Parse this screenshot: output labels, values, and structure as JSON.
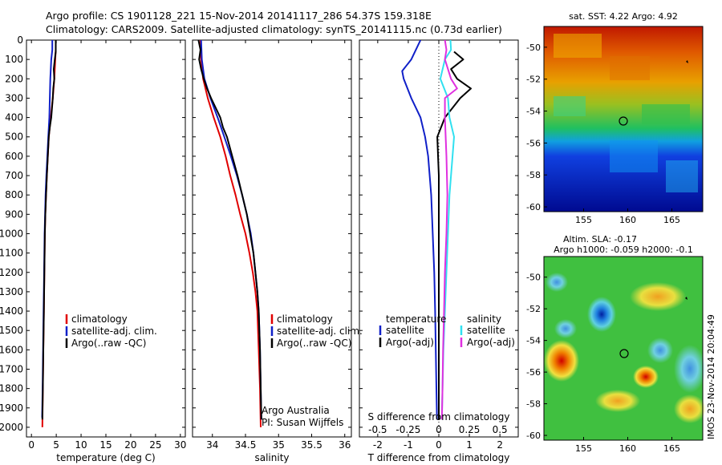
{
  "title_line1": "Argo profile: CS 1901128_221 15-Nov-2014 20141117_286 54.37S 159.318E",
  "title_line2": "Climatology: CARS2009. Satellite-adjusted climatology: synTS_20141115.nc (0.73d earlier)",
  "colors": {
    "climatology": "#e00000",
    "satellite": "#1020c8",
    "argo": "#000000",
    "sal_satellite": "#30e0f0",
    "sal_argo": "#e030e0"
  },
  "chart_data": [
    {
      "type": "line",
      "xlabel": "temperature (deg C)",
      "xlim": [
        -1,
        31
      ],
      "ylim": [
        0,
        2050
      ],
      "x_ticks": [
        "0",
        "5",
        "10",
        "15",
        "20",
        "25",
        "30"
      ],
      "y_ticks": [
        "0",
        "100",
        "200",
        "300",
        "400",
        "500",
        "600",
        "700",
        "800",
        "900",
        "1000",
        "1100",
        "1200",
        "1300",
        "1400",
        "1500",
        "1600",
        "1700",
        "1800",
        "1900",
        "2000"
      ],
      "legend": [
        "climatology",
        "satellite-adj. clim.",
        "Argo(..raw -QC)"
      ],
      "series": [
        {
          "name": "climatology",
          "color": "#e00000",
          "points": [
            [
              4.9,
              0
            ],
            [
              4.9,
              50
            ],
            [
              4.8,
              100
            ],
            [
              4.6,
              200
            ],
            [
              4.3,
              300
            ],
            [
              3.9,
              400
            ],
            [
              3.5,
              500
            ],
            [
              3.3,
              600
            ],
            [
              3.1,
              700
            ],
            [
              2.95,
              800
            ],
            [
              2.8,
              900
            ],
            [
              2.7,
              1000
            ],
            [
              2.6,
              1200
            ],
            [
              2.5,
              1400
            ],
            [
              2.4,
              1600
            ],
            [
              2.3,
              1800
            ],
            [
              2.2,
              2000
            ]
          ]
        },
        {
          "name": "satellite-adj. clim.",
          "color": "#1020c8",
          "points": [
            [
              4.2,
              0
            ],
            [
              4.2,
              50
            ],
            [
              4.0,
              100
            ],
            [
              3.8,
              200
            ],
            [
              3.7,
              300
            ],
            [
              3.6,
              400
            ],
            [
              3.4,
              500
            ],
            [
              3.2,
              600
            ],
            [
              3.0,
              700
            ],
            [
              2.85,
              800
            ],
            [
              2.75,
              900
            ],
            [
              2.65,
              1000
            ],
            [
              2.55,
              1200
            ],
            [
              2.45,
              1400
            ],
            [
              2.35,
              1600
            ],
            [
              2.25,
              1800
            ],
            [
              2.15,
              1950
            ]
          ]
        },
        {
          "name": "Argo(..raw -QC)",
          "color": "#000000",
          "points": [
            [
              4.9,
              0
            ],
            [
              4.9,
              60
            ],
            [
              4.7,
              100
            ],
            [
              4.5,
              150
            ],
            [
              4.6,
              200
            ],
            [
              4.4,
              250
            ],
            [
              4.3,
              300
            ],
            [
              4.0,
              400
            ],
            [
              3.7,
              450
            ],
            [
              3.5,
              500
            ],
            [
              3.3,
              600
            ],
            [
              3.1,
              700
            ],
            [
              2.95,
              800
            ],
            [
              2.8,
              900
            ],
            [
              2.7,
              1000
            ],
            [
              2.6,
              1200
            ],
            [
              2.5,
              1400
            ],
            [
              2.4,
              1600
            ],
            [
              2.3,
              1800
            ],
            [
              2.2,
              1960
            ]
          ]
        }
      ]
    },
    {
      "type": "line",
      "xlabel": "salinity",
      "xlim": [
        33.7,
        36.1
      ],
      "ylim": [
        0,
        2050
      ],
      "x_ticks": [
        "34",
        "34.5",
        "35",
        "35.5",
        "36"
      ],
      "legend": [
        "climatology",
        "satellite-adj. clim.",
        "Argo(..raw -QC)"
      ],
      "annotation": [
        "Argo Australia",
        "PI: Susan Wijffels"
      ],
      "series": [
        {
          "name": "climatology",
          "color": "#e00000",
          "points": [
            [
              33.82,
              0
            ],
            [
              33.83,
              100
            ],
            [
              33.86,
              200
            ],
            [
              33.93,
              300
            ],
            [
              34.02,
              400
            ],
            [
              34.12,
              500
            ],
            [
              34.2,
              600
            ],
            [
              34.27,
              700
            ],
            [
              34.35,
              800
            ],
            [
              34.42,
              900
            ],
            [
              34.5,
              1000
            ],
            [
              34.56,
              1100
            ],
            [
              34.61,
              1200
            ],
            [
              34.65,
              1300
            ],
            [
              34.68,
              1400
            ],
            [
              34.7,
              1600
            ],
            [
              34.72,
              1800
            ],
            [
              34.73,
              2000
            ]
          ]
        },
        {
          "name": "satellite-adj. clim.",
          "color": "#1020c8",
          "points": [
            [
              33.83,
              0
            ],
            [
              33.84,
              100
            ],
            [
              33.88,
              200
            ],
            [
              33.97,
              300
            ],
            [
              34.08,
              400
            ],
            [
              34.18,
              500
            ],
            [
              34.28,
              600
            ],
            [
              34.37,
              700
            ],
            [
              34.45,
              800
            ],
            [
              34.52,
              900
            ],
            [
              34.58,
              1000
            ],
            [
              34.62,
              1100
            ],
            [
              34.65,
              1200
            ],
            [
              34.68,
              1300
            ],
            [
              34.7,
              1400
            ],
            [
              34.72,
              1600
            ],
            [
              34.73,
              1800
            ],
            [
              34.74,
              1960
            ]
          ]
        },
        {
          "name": "Argo(..raw -QC)",
          "color": "#000000",
          "points": [
            [
              33.79,
              0
            ],
            [
              33.82,
              50
            ],
            [
              33.8,
              100
            ],
            [
              33.83,
              150
            ],
            [
              33.87,
              200
            ],
            [
              33.92,
              250
            ],
            [
              33.98,
              300
            ],
            [
              34.05,
              350
            ],
            [
              34.12,
              400
            ],
            [
              34.16,
              450
            ],
            [
              34.22,
              500
            ],
            [
              34.3,
              600
            ],
            [
              34.38,
              700
            ],
            [
              34.45,
              800
            ],
            [
              34.52,
              900
            ],
            [
              34.57,
              1000
            ],
            [
              34.62,
              1100
            ],
            [
              34.65,
              1200
            ],
            [
              34.68,
              1300
            ],
            [
              34.7,
              1400
            ],
            [
              34.72,
              1600
            ],
            [
              34.73,
              1800
            ],
            [
              34.74,
              1960
            ]
          ]
        }
      ]
    },
    {
      "type": "line",
      "xlabel": "T difference from climatology",
      "top_label": "S difference from climatology",
      "xlim": [
        -2.6,
        2.6
      ],
      "ylim": [
        0,
        2050
      ],
      "x_ticks": [
        "-2",
        "-1",
        "0",
        "1",
        "2"
      ],
      "s_ticks": [
        "-0.5",
        "-0.25",
        "0",
        "0.25",
        "0.5"
      ],
      "legend_temperature": [
        "temperature",
        "satellite",
        "Argo(-adj)"
      ],
      "legend_salinity": [
        "salinity",
        "satellite",
        "Argo(-adj)"
      ],
      "series": [
        {
          "name": "satellite",
          "color": "#1020c8",
          "points": [
            [
              -0.6,
              0
            ],
            [
              -0.9,
              100
            ],
            [
              -1.2,
              160
            ],
            [
              -1.15,
              200
            ],
            [
              -0.9,
              300
            ],
            [
              -0.6,
              400
            ],
            [
              -0.45,
              500
            ],
            [
              -0.35,
              600
            ],
            [
              -0.3,
              700
            ],
            [
              -0.25,
              800
            ],
            [
              -0.2,
              1000
            ],
            [
              -0.15,
              1200
            ],
            [
              -0.12,
              1400
            ],
            [
              -0.1,
              1600
            ],
            [
              -0.08,
              1800
            ],
            [
              -0.06,
              1960
            ]
          ]
        },
        {
          "name": "Argo(-adj)",
          "color": "#000000",
          "points": [
            [
              0.5,
              60
            ],
            [
              0.8,
              100
            ],
            [
              0.4,
              150
            ],
            [
              0.6,
              200
            ],
            [
              1.05,
              250
            ],
            [
              0.7,
              300
            ],
            [
              0.2,
              400
            ],
            [
              -0.05,
              500
            ],
            [
              0.0,
              700
            ],
            [
              0.0,
              1000
            ],
            [
              0.0,
              1400
            ],
            [
              0.0,
              1800
            ],
            [
              0.0,
              1960
            ]
          ]
        },
        {
          "name": "satellite",
          "color": "#30e0f0",
          "points": [
            [
              0.38,
              0
            ],
            [
              0.4,
              50
            ],
            [
              0.2,
              100
            ],
            [
              0.05,
              200
            ],
            [
              0.3,
              300
            ],
            [
              0.35,
              400
            ],
            [
              0.5,
              500
            ],
            [
              0.45,
              600
            ],
            [
              0.4,
              700
            ],
            [
              0.35,
              800
            ],
            [
              0.3,
              1000
            ],
            [
              0.25,
              1200
            ],
            [
              0.2,
              1400
            ],
            [
              0.15,
              1600
            ],
            [
              0.12,
              1800
            ],
            [
              0.1,
              1960
            ]
          ]
        },
        {
          "name": "Argo(-adj)",
          "color": "#e030e0",
          "points": [
            [
              0.2,
              0
            ],
            [
              0.25,
              50
            ],
            [
              0.2,
              100
            ],
            [
              0.4,
              200
            ],
            [
              0.6,
              250
            ],
            [
              0.2,
              300
            ],
            [
              0.2,
              400
            ],
            [
              0.25,
              600
            ],
            [
              0.28,
              800
            ],
            [
              0.25,
              1000
            ],
            [
              0.2,
              1200
            ],
            [
              0.17,
              1400
            ],
            [
              0.14,
              1600
            ],
            [
              0.12,
              1800
            ],
            [
              0.1,
              1960
            ]
          ]
        }
      ]
    },
    {
      "type": "heatmap",
      "title": "sat. SST: 4.22 Argo: 4.92",
      "x_ticks": [
        "155",
        "160",
        "165"
      ],
      "y_ticks": [
        "-50",
        "-52",
        "-54",
        "-56",
        "-58",
        "-60"
      ],
      "xlim": [
        150.5,
        168.5
      ],
      "ylim": [
        -60.3,
        -48.7
      ]
    },
    {
      "type": "heatmap",
      "title_line1": "Altim. SLA: -0.17",
      "title_line2": "Argo h1000: -0.059 h2000: -0.1",
      "x_ticks": [
        "155",
        "160",
        "165"
      ],
      "y_ticks": [
        "-50",
        "-52",
        "-54",
        "-56",
        "-58",
        "-60"
      ],
      "xlim": [
        150.5,
        168.5
      ],
      "ylim": [
        -60.3,
        -48.7
      ]
    }
  ],
  "side_stamp": "IMOS 23-Nov-2014 20:04:49"
}
